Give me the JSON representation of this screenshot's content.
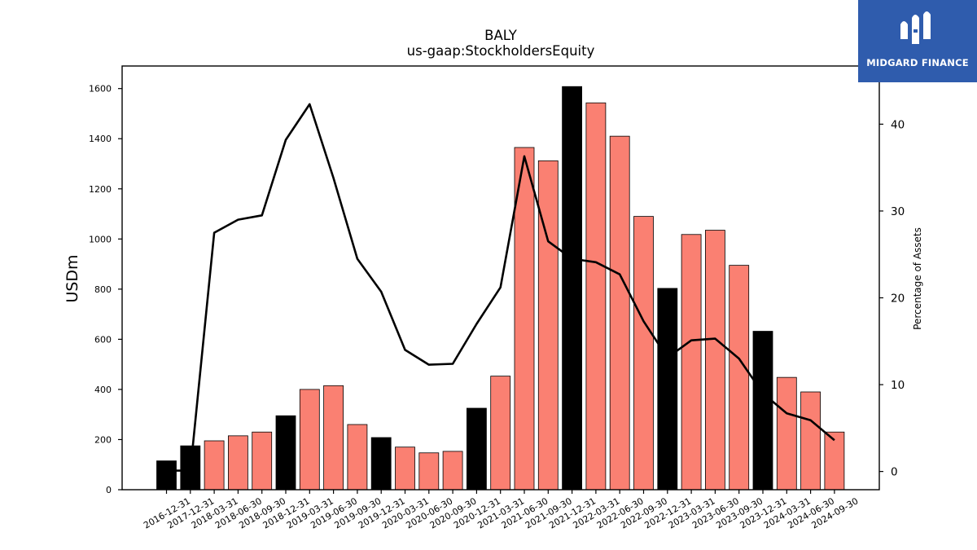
{
  "chart_data": {
    "type": "bar",
    "title": "BALY",
    "subtitle": "us-gaap:StockholdersEquity",
    "ylabel": "USDm",
    "y2label": "Percentage of Assets",
    "ylim": [
      0,
      1690
    ],
    "y2lim": [
      -2.1,
      46.7
    ],
    "yticks": [
      0,
      200,
      400,
      600,
      800,
      1000,
      1200,
      1400,
      1600
    ],
    "y2ticks": [
      0,
      10,
      20,
      30,
      40
    ],
    "categories": [
      "2016-12-31",
      "2017-12-31",
      "2018-03-31",
      "2018-06-30",
      "2018-09-30",
      "2018-12-31",
      "2019-03-31",
      "2019-06-30",
      "2019-09-30",
      "2019-12-31",
      "2020-03-31",
      "2020-06-30",
      "2020-09-30",
      "2020-12-31",
      "2021-03-31",
      "2021-06-30",
      "2021-09-30",
      "2021-12-31",
      "2022-03-31",
      "2022-06-30",
      "2022-09-30",
      "2022-12-31",
      "2023-03-31",
      "2023-06-30",
      "2023-09-30",
      "2023-12-31",
      "2024-03-31",
      "2024-06-30",
      "2024-09-30"
    ],
    "series": [
      {
        "type": "bar",
        "values": [
          115,
          175,
          195,
          215,
          230,
          295,
          400,
          415,
          260,
          208,
          170,
          147,
          153,
          325,
          453,
          1365,
          1312,
          1608,
          1543,
          1410,
          1090,
          803,
          1018,
          1035,
          895,
          632,
          448,
          390,
          230
        ],
        "colors": [
          "#000000",
          "#000000",
          "#fa8072",
          "#fa8072",
          "#fa8072",
          "#000000",
          "#fa8072",
          "#fa8072",
          "#fa8072",
          "#000000",
          "#fa8072",
          "#fa8072",
          "#fa8072",
          "#000000",
          "#fa8072",
          "#fa8072",
          "#fa8072",
          "#000000",
          "#fa8072",
          "#fa8072",
          "#fa8072",
          "#000000",
          "#fa8072",
          "#fa8072",
          "#fa8072",
          "#000000",
          "#fa8072",
          "#fa8072",
          "#fa8072"
        ]
      },
      {
        "type": "line",
        "axis": "right",
        "color": "#000000",
        "values": [
          0.1,
          0.1,
          27.5,
          29.0,
          29.5,
          38.2,
          42.3,
          33.8,
          24.5,
          20.7,
          14.0,
          12.3,
          12.4,
          17.0,
          21.2,
          36.3,
          26.5,
          24.5,
          24.1,
          22.7,
          17.3,
          13.1,
          15.1,
          15.3,
          13.0,
          9.0,
          6.7,
          5.9,
          3.6
        ]
      }
    ]
  },
  "logo": {
    "text": "MIDGARD FINANCE"
  }
}
